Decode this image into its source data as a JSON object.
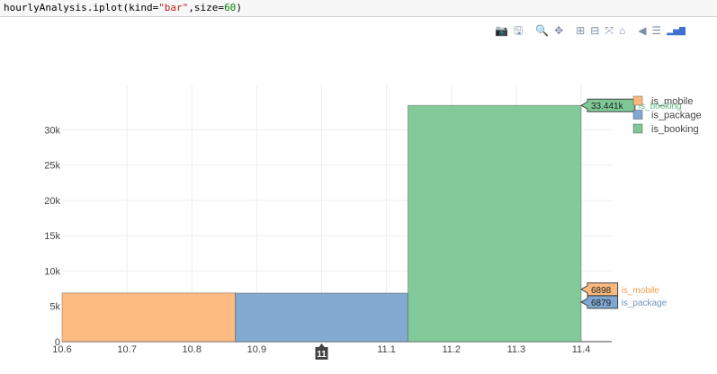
{
  "code": {
    "prefix": "hourlyAnalysis.iplot(kind=",
    "kind": "\"bar\"",
    "mid": ",size=",
    "size": "60",
    "suffix": ")"
  },
  "modebar": {
    "camera": "📷",
    "save": "🖫",
    "zoom": "🔍",
    "pan": "✥",
    "zoom_in": "⊞",
    "zoom_out": "⊟",
    "autoscale": "⤧",
    "home": "⌂",
    "hover_closest": "◀",
    "hover_compare": "☰",
    "logo": "▂▅▇"
  },
  "colors": {
    "is_mobile": "#fdb97d",
    "is_package": "#7fa7cf",
    "is_booking": "#7ec896",
    "is_mobile_label": "#fa9e50",
    "is_package_label": "#6f95bd",
    "is_booking_label": "#5cbc7c"
  },
  "chart_data": {
    "type": "bar",
    "barmode": "overlay",
    "x_ticks": [
      "10.6",
      "10.7",
      "10.8",
      "10.9",
      "11",
      "11.1",
      "11.2",
      "11.3",
      "11.4"
    ],
    "x_tick_values": [
      10.6,
      10.7,
      10.8,
      10.9,
      11.0,
      11.1,
      11.2,
      11.3,
      11.4
    ],
    "y_ticks": [
      "0",
      "5k",
      "10k",
      "15k",
      "20k",
      "25k",
      "30k"
    ],
    "y_tick_values": [
      0,
      5000,
      10000,
      15000,
      20000,
      25000,
      30000
    ],
    "xlim": [
      10.6,
      11.4
    ],
    "ylim": [
      0,
      35000
    ],
    "x_hover_label": "11",
    "series": [
      {
        "name": "is_mobile",
        "x_start": 10.6,
        "x_end": 10.867,
        "value": 6898,
        "color_key": "is_mobile"
      },
      {
        "name": "is_package",
        "x_start": 10.867,
        "x_end": 11.133,
        "value": 6879,
        "color_key": "is_package"
      },
      {
        "name": "is_booking",
        "x_start": 11.133,
        "x_end": 11.4,
        "value": 33441,
        "color_key": "is_booking"
      }
    ],
    "hover_labels": [
      {
        "value_text": "33.441k",
        "series_text": "is_booking",
        "value": 33441,
        "color_key": "is_booking"
      },
      {
        "value_text": "6898",
        "series_text": "is_mobile",
        "value": 6898,
        "color_key": "is_mobile"
      },
      {
        "value_text": "6879",
        "series_text": "is_package",
        "value": 6879,
        "color_key": "is_package"
      }
    ],
    "legend": {
      "position": "top-right",
      "items": [
        {
          "name": "is_mobile",
          "label": "is_mobile",
          "color_key": "is_mobile"
        },
        {
          "name": "is_package",
          "label": "is_package",
          "color_key": "is_package"
        },
        {
          "name": "is_booking",
          "label": "is_booking",
          "color_key": "is_booking"
        }
      ]
    }
  }
}
